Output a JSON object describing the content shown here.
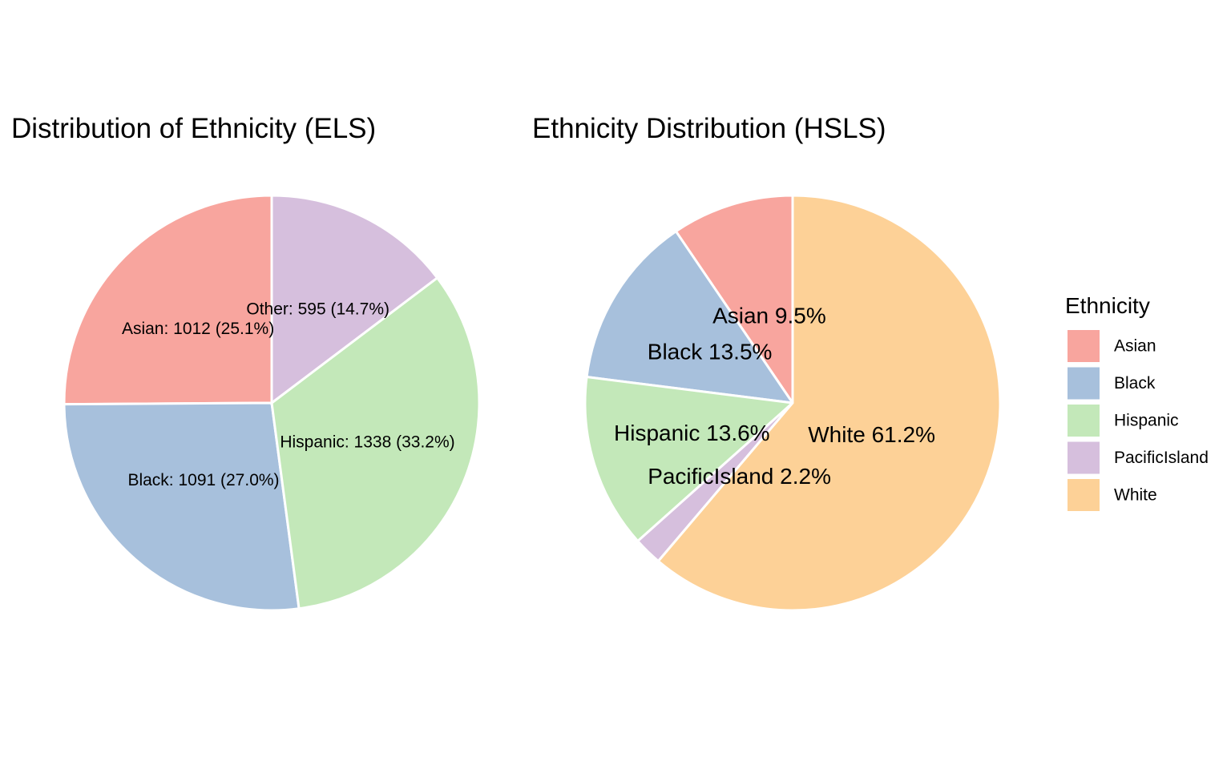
{
  "chart_data": [
    {
      "type": "pie",
      "title": "Distribution of Ethnicity (ELS)",
      "start_angle_deg": 0,
      "direction": "counterclockwise",
      "slices": [
        {
          "name": "Asian",
          "value": 1012,
          "percent": 25.1,
          "color": "#F8A59E",
          "label": "Asian: 1012 (25.1%)"
        },
        {
          "name": "Black",
          "value": 1091,
          "percent": 27.0,
          "color": "#A7C0DC",
          "label": "Black: 1091 (27.0%)"
        },
        {
          "name": "Hispanic",
          "value": 1338,
          "percent": 33.2,
          "color": "#C3E8B9",
          "label": "Hispanic: 1338 (33.2%)"
        },
        {
          "name": "Other",
          "value": 595,
          "percent": 14.7,
          "color": "#D6BFDD",
          "label": "Other: 595 (14.7%)"
        }
      ]
    },
    {
      "type": "pie",
      "title": "Ethnicity Distribution (HSLS)",
      "start_angle_deg": 0,
      "direction": "counterclockwise",
      "slices": [
        {
          "name": "Asian",
          "percent": 9.5,
          "color": "#F8A59E",
          "label": "Asian 9.5%"
        },
        {
          "name": "Black",
          "percent": 13.5,
          "color": "#A7C0DC",
          "label": "Black 13.5%"
        },
        {
          "name": "Hispanic",
          "percent": 13.6,
          "color": "#C3E8B9",
          "label": "Hispanic 13.6%"
        },
        {
          "name": "PacificIsland",
          "percent": 2.2,
          "color": "#D6BFDD",
          "label": "PacificIsland 2.2%"
        },
        {
          "name": "White",
          "percent": 61.2,
          "color": "#FDD197",
          "label": "White 61.2%"
        }
      ],
      "legend": {
        "title": "Ethnicity",
        "position": "right",
        "items": [
          {
            "label": "Asian",
            "color": "#F8A59E"
          },
          {
            "label": "Black",
            "color": "#A7C0DC"
          },
          {
            "label": "Hispanic",
            "color": "#C3E8B9"
          },
          {
            "label": "PacificIsland",
            "color": "#D6BFDD"
          },
          {
            "label": "White",
            "color": "#FDD197"
          }
        ]
      }
    }
  ]
}
